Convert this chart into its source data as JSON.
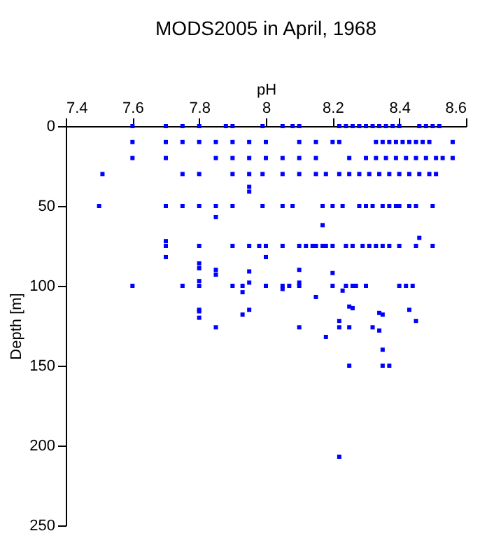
{
  "chart_data": {
    "type": "scatter",
    "title": "MODS2005 in April, 1968",
    "xlabel": "pH",
    "ylabel": "Depth [m]",
    "xlim": [
      7.4,
      8.6
    ],
    "xticks": [
      7.4,
      7.6,
      7.8,
      8,
      8.2,
      8.4,
      8.6
    ],
    "ylim": [
      250,
      0
    ],
    "yticks": [
      0,
      50,
      100,
      150,
      200,
      250
    ],
    "grid": false,
    "marker": "square",
    "series": [
      {
        "color": "#0000ff",
        "x": [
          7.6,
          7.7,
          7.75,
          7.8,
          7.88,
          7.9,
          7.99,
          8.05,
          8.08,
          8.1,
          8.22,
          8.24,
          8.26,
          8.28,
          8.3,
          8.32,
          8.34,
          8.36,
          8.38,
          8.4,
          8.46,
          8.48,
          8.5,
          8.52,
          7.6,
          7.7,
          7.75,
          7.8,
          7.85,
          7.9,
          7.95,
          8.0,
          8.1,
          8.15,
          8.2,
          8.22,
          8.33,
          8.35,
          8.37,
          8.39,
          8.41,
          8.43,
          8.45,
          8.47,
          8.49,
          8.56,
          7.6,
          7.7,
          7.85,
          7.9,
          7.95,
          8.0,
          8.05,
          8.1,
          8.15,
          8.25,
          8.3,
          8.33,
          8.36,
          8.39,
          8.42,
          8.45,
          8.48,
          8.51,
          8.53,
          8.56,
          7.51,
          7.75,
          7.8,
          7.9,
          7.95,
          7.99,
          8.05,
          8.1,
          8.15,
          8.18,
          8.22,
          8.25,
          8.28,
          8.31,
          8.34,
          8.37,
          8.4,
          8.43,
          8.46,
          8.49,
          8.51,
          7.5,
          7.7,
          7.75,
          7.8,
          7.85,
          7.9,
          7.99,
          8.05,
          8.08,
          8.17,
          8.2,
          8.23,
          8.28,
          8.3,
          8.32,
          8.35,
          8.37,
          8.39,
          8.4,
          8.43,
          8.45,
          8.5,
          7.85,
          7.95,
          7.95,
          8.17,
          8.46,
          7.7,
          7.8,
          7.9,
          7.95,
          7.98,
          8.0,
          8.05,
          8.1,
          8.12,
          8.14,
          8.15,
          8.17,
          8.18,
          8.2,
          8.24,
          8.26,
          8.29,
          8.31,
          8.33,
          8.35,
          8.37,
          8.4,
          8.45,
          8.5,
          7.7,
          7.7,
          7.8,
          7.8,
          7.8,
          7.85,
          7.85,
          7.95,
          7.95,
          8.0,
          8.0,
          8.1,
          8.2,
          8.1,
          7.6,
          7.75,
          7.8,
          7.9,
          7.93,
          8.0,
          8.05,
          8.07,
          8.1,
          8.2,
          8.24,
          8.26,
          8.27,
          8.3,
          8.4,
          8.42,
          8.44,
          8.05,
          8.23,
          8.15,
          8.25,
          8.34,
          8.43,
          8.22,
          8.45,
          7.93,
          7.8,
          7.8,
          7.93,
          7.95,
          7.8,
          7.85,
          8.1,
          8.18,
          8.22,
          8.25,
          8.32,
          8.34,
          8.35,
          8.35,
          8.35,
          8.37,
          8.25,
          8.26,
          8.22
        ],
        "values": [
          0,
          0,
          0,
          0,
          0,
          0,
          0,
          0,
          0,
          0,
          0,
          0,
          0,
          0,
          0,
          0,
          0,
          0,
          0,
          0,
          0,
          0,
          0,
          0,
          10,
          10,
          10,
          10,
          10,
          10,
          10,
          10,
          10,
          10,
          10,
          10,
          10,
          10,
          10,
          10,
          10,
          10,
          10,
          10,
          10,
          10,
          20,
          20,
          20,
          20,
          20,
          20,
          20,
          20,
          20,
          20,
          20,
          20,
          20,
          20,
          20,
          20,
          20,
          20,
          20,
          20,
          30,
          30,
          30,
          30,
          30,
          30,
          30,
          30,
          30,
          30,
          30,
          30,
          30,
          30,
          30,
          30,
          30,
          30,
          30,
          30,
          30,
          50,
          50,
          50,
          50,
          50,
          50,
          50,
          50,
          50,
          50,
          50,
          50,
          50,
          50,
          50,
          50,
          50,
          50,
          50,
          50,
          50,
          50,
          57,
          38,
          41,
          62,
          70,
          75,
          75,
          75,
          75,
          75,
          75,
          75,
          75,
          75,
          75,
          75,
          75,
          75,
          75,
          75,
          75,
          75,
          75,
          75,
          75,
          75,
          75,
          75,
          75,
          72,
          82,
          86,
          89,
          97,
          90,
          93,
          91,
          98,
          82,
          82,
          90,
          92,
          98,
          100,
          100,
          100,
          100,
          100,
          100,
          100,
          100,
          100,
          100,
          100,
          100,
          100,
          100,
          100,
          100,
          100,
          102,
          103,
          107,
          113,
          117,
          115,
          122,
          122,
          104,
          115,
          120,
          118,
          115,
          116,
          126,
          126,
          132,
          126,
          126,
          126,
          128,
          118,
          140,
          150,
          150,
          150,
          114,
          207
        ]
      }
    ]
  }
}
